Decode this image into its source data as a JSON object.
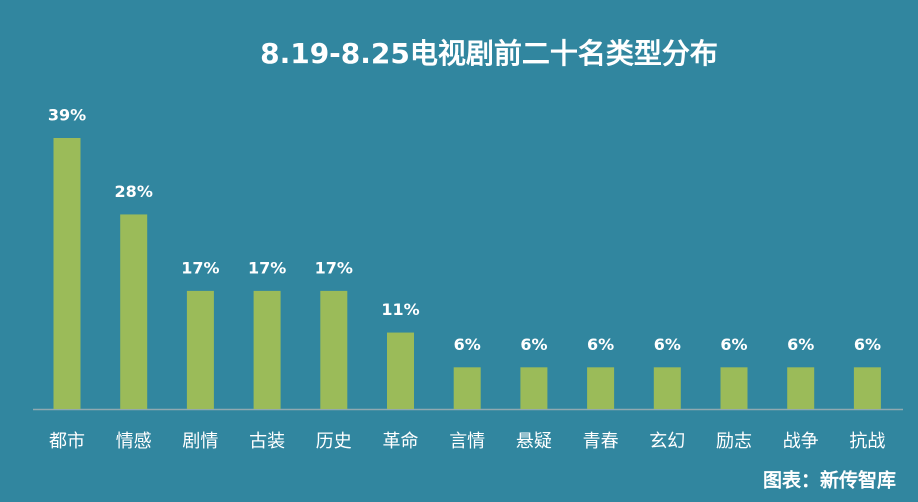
{
  "chart_data": {
    "type": "bar",
    "title": "8.19-8.25电视剧前二十名类型分布",
    "categories": [
      "都市",
      "情感",
      "剧情",
      "古装",
      "历史",
      "革命",
      "言情",
      "悬疑",
      "青春",
      "玄幻",
      "励志",
      "战争",
      "抗战"
    ],
    "values": [
      39,
      28,
      17,
      17,
      17,
      11,
      6,
      6,
      6,
      6,
      6,
      6,
      6
    ],
    "value_labels": [
      "39%",
      "28%",
      "17%",
      "17%",
      "17%",
      "11%",
      "6%",
      "6%",
      "6%",
      "6%",
      "6%",
      "6%",
      "6%"
    ],
    "color": "#9bbb59",
    "source": "图表：新传智库"
  }
}
